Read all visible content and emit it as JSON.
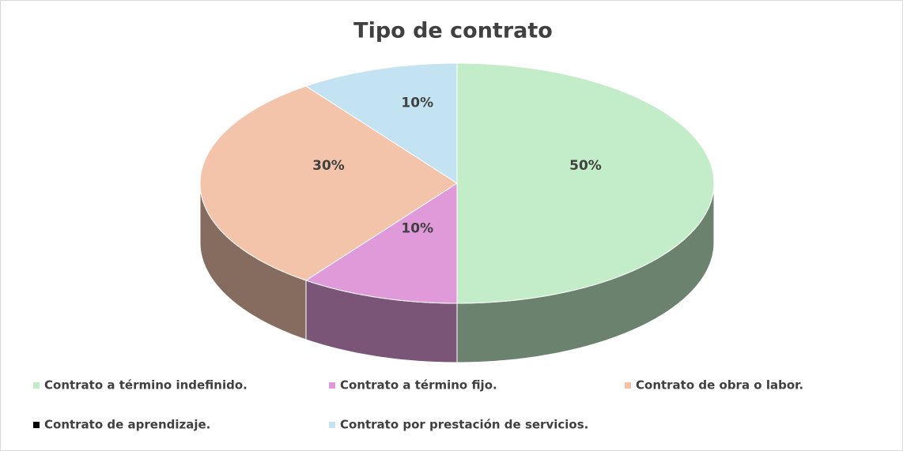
{
  "chart_data": {
    "type": "pie3d",
    "title": "Tipo de contrato",
    "categories": [
      "Contrato a término indefinido.",
      "Contrato a término fijo.",
      "Contrato de obra o labor.",
      "Contrato de aprendizaje.",
      "Contrato por prestación de servicios."
    ],
    "values": [
      50,
      10,
      30,
      0,
      10
    ],
    "value_labels": [
      "50%",
      "10%",
      "30%",
      null,
      "10%"
    ],
    "colors": [
      "#c2edc8",
      "#e09ad9",
      "#f3c4aa",
      "#000000",
      "#c3e3f2"
    ],
    "legend": "bottom"
  }
}
